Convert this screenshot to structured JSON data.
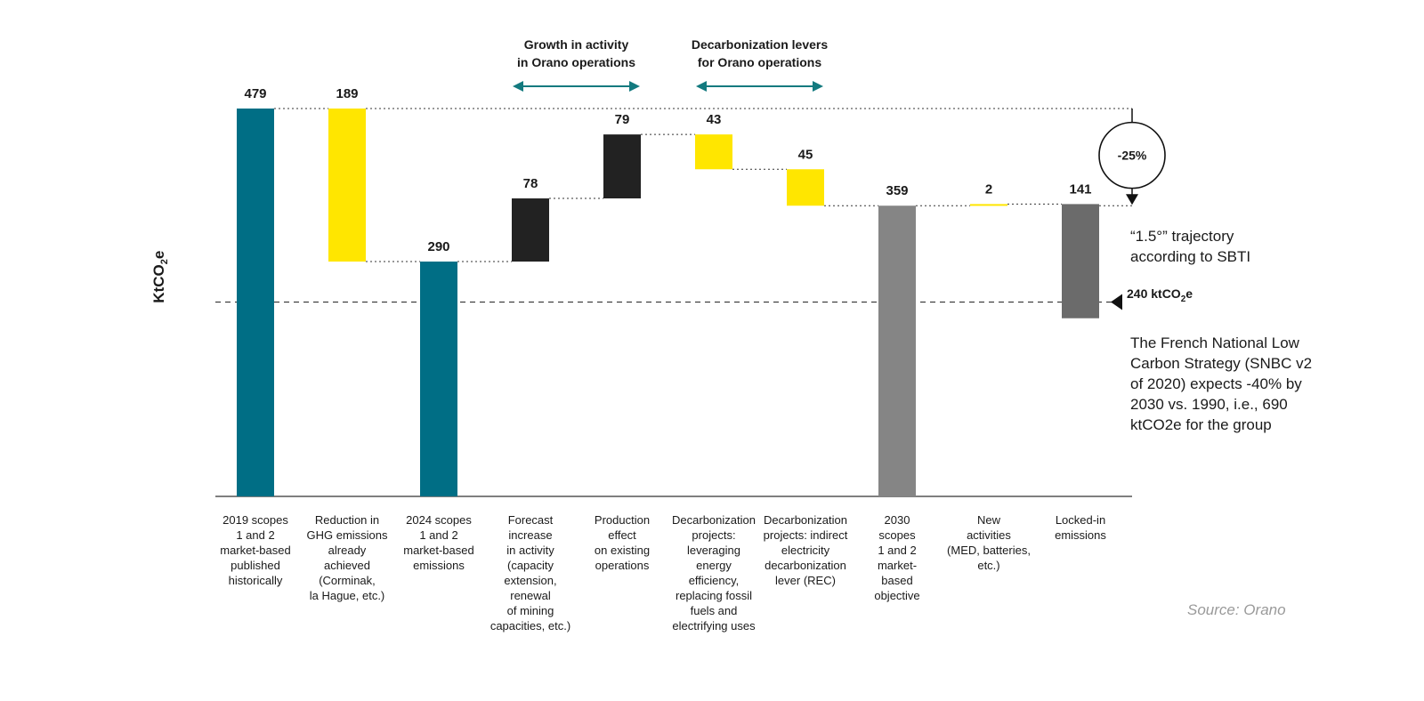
{
  "colors": {
    "teal": "#006E85",
    "yellow": "#FFE600",
    "black": "#222222",
    "grey": "#858585",
    "dark_grey": "#6B6B6B",
    "arrow": "#137A7F"
  },
  "chart_data": {
    "type": "waterfall",
    "unit": "ktCO2e",
    "ylabel": "KtCO2e",
    "ylim": [
      0,
      479
    ],
    "categories": [
      "2019 scopes 1 and 2 market-based published historically",
      "Reduction in GHG emissions already achieved (Corminak, la Hague, etc.)",
      "2024 scopes 1 and 2 market-based emissions",
      "Forecast increase in activity (capacity extension, renewal of mining capacities, etc.)",
      "Production effect on existing operations",
      "Decarbonization projects: leveraging energy efficiency, replacing fossil fuels and electrifying uses",
      "Decarbonization projects: indirect electricity decarbonization lever (REC)",
      "2030 scopes 1 and 2 market-based objective",
      "New activities (MED, batteries, etc.)",
      "Locked-in emissions"
    ],
    "bars": [
      {
        "label": "479",
        "value": 479,
        "base": 0,
        "top": 479,
        "color": "teal"
      },
      {
        "label": "189",
        "value": -189,
        "base": 290,
        "top": 479,
        "color": "yellow"
      },
      {
        "label": "290",
        "value": 290,
        "base": 0,
        "top": 290,
        "color": "teal"
      },
      {
        "label": "78",
        "value": 78,
        "base": 290,
        "top": 368,
        "color": "black"
      },
      {
        "label": "79",
        "value": 79,
        "base": 368,
        "top": 447,
        "color": "black"
      },
      {
        "label": "43",
        "value": -43,
        "base": 404,
        "top": 447,
        "color": "yellow"
      },
      {
        "label": "45",
        "value": -45,
        "base": 359,
        "top": 404,
        "color": "yellow"
      },
      {
        "label": "359",
        "value": 359,
        "base": 0,
        "top": 359,
        "color": "grey"
      },
      {
        "label": "2",
        "value": 2,
        "base": 359,
        "top": 361,
        "color": "yellow"
      },
      {
        "label": "141",
        "value": -141,
        "base": 220,
        "top": 361,
        "color": "dark_grey"
      }
    ],
    "category_lines": [
      [
        "2019 scopes",
        "1 and 2",
        "market-based",
        "published",
        "historically"
      ],
      [
        "Reduction in",
        "GHG emissions",
        "already",
        "achieved",
        "(Corminak,",
        "la Hague, etc.)"
      ],
      [
        "2024 scopes",
        "1 and 2",
        "market-based",
        "emissions"
      ],
      [
        "Forecast",
        "increase",
        "in activity",
        "(capacity",
        "extension,",
        "renewal",
        "of mining",
        "capacities, etc.)"
      ],
      [
        "Production",
        "effect",
        "on existing",
        "operations"
      ],
      [
        "Decarbonization",
        "projects:",
        "leveraging",
        "energy",
        "efficiency,",
        "replacing fossil",
        "fuels and",
        "electrifying uses"
      ],
      [
        "Decarbonization",
        "projects: indirect",
        "electricity",
        "decarbonization",
        "lever (REC)"
      ],
      [
        "2030",
        "scopes",
        "1 and 2",
        "market-",
        "based",
        "objective"
      ],
      [
        "New",
        "activities",
        "(MED, batteries,",
        "etc.)"
      ],
      [
        "Locked-in",
        "emissions"
      ]
    ],
    "group_headers": [
      {
        "lines": [
          "Growth in activity",
          "in Orano operations"
        ],
        "from_bar": 3,
        "to_bar": 4
      },
      {
        "lines": [
          "Decarbonization levers",
          "for Orano operations"
        ],
        "from_bar": 5,
        "to_bar": 6
      }
    ],
    "reduction_callout": {
      "label": "-25%",
      "from_value": 479,
      "to_value": 359
    },
    "reference_line": {
      "value": 240,
      "label": "240 ktCO2e"
    }
  },
  "annotations": {
    "ylabel_main": "KtCO",
    "ylabel_sub": "2",
    "ylabel_tail": "e",
    "trajectory_line1": "“1.5°” trajectory",
    "trajectory_line2": "according to SBTI",
    "ref_main": "240 ktCO",
    "ref_sub": "2",
    "ref_tail": "e",
    "snbc_line1": "The French National Low",
    "snbc_line2": "Carbon Strategy (SNBC v2",
    "snbc_line3": "of 2020) expects -40% by",
    "snbc_line4": "2030 vs. 1990, i.e., 690",
    "snbc_line5": "ktCO2e for the group",
    "source": "Source: Orano"
  }
}
